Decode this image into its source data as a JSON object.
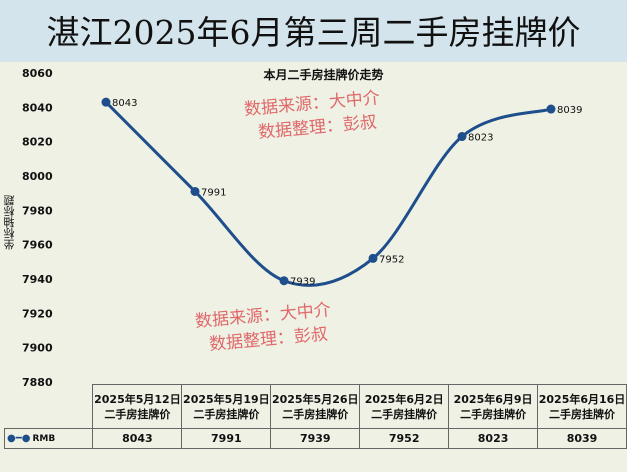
{
  "header": {
    "title": "湛江2025年6月第三周二手房挂牌价"
  },
  "watermarks": [
    {
      "line1": "数据来源：大中介",
      "line2": "数据整理：彭叔"
    },
    {
      "line1": "数据来源：大中介",
      "line2": "数据整理：彭叔"
    }
  ],
  "chart_data": {
    "type": "line",
    "title": "本月二手房挂牌价走势",
    "xlabel": "",
    "ylabel": "坐标轴标题",
    "ylim": [
      7880,
      8060
    ],
    "yticks": [
      "8060",
      "8040",
      "8020",
      "8000",
      "7980",
      "7960",
      "7940",
      "7920",
      "7900",
      "7880"
    ],
    "categories": [
      "2025年5月12日二手房挂牌价",
      "2025年5月19日二手房挂牌价",
      "2025年5月26日二手房挂牌价",
      "2025年6月2日二手房挂牌价",
      "2025年6月9日二手房挂牌价",
      "2025年6月16日二手房挂牌价"
    ],
    "series": [
      {
        "name": "RMB",
        "values": [
          8043,
          7991,
          7939,
          7952,
          8023,
          8039
        ],
        "labels": [
          "8043",
          "7991",
          "7939",
          "7952",
          "8023",
          "8039"
        ]
      }
    ],
    "color": "#1f4e8c",
    "smooth": true,
    "grid": false,
    "legend": "data-table"
  }
}
